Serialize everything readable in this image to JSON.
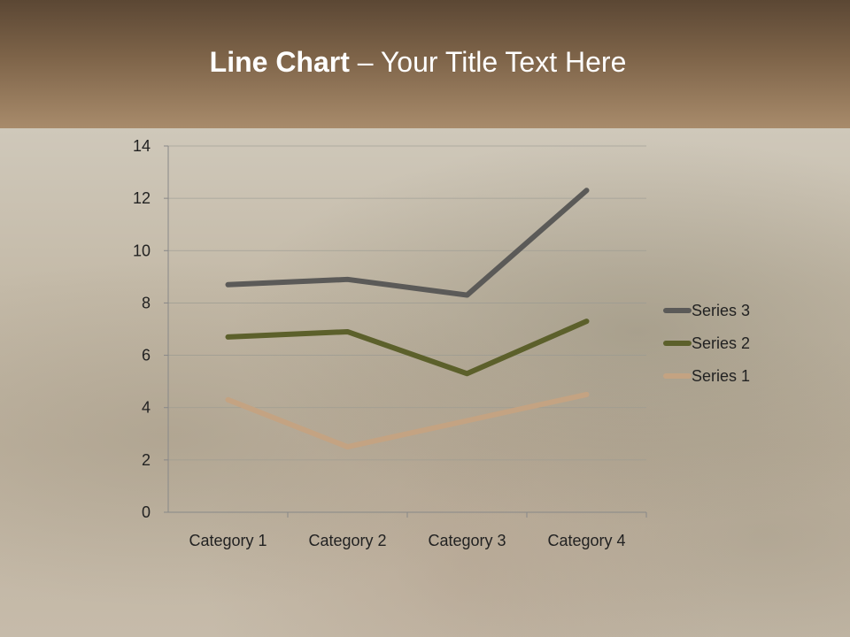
{
  "slide": {
    "title_bold": "Line Chart",
    "title_rest": " – Your Title Text Here"
  },
  "chart_data": {
    "type": "line",
    "title": "",
    "xlabel": "",
    "ylabel": "",
    "categories": [
      "Category 1",
      "Category 2",
      "Category 3",
      "Category 4"
    ],
    "ylim": [
      0,
      14
    ],
    "yticks": [
      0,
      2,
      4,
      6,
      8,
      10,
      12,
      14
    ],
    "grid": true,
    "legend_position": "right",
    "series": [
      {
        "name": "Series 1",
        "values": [
          4.3,
          2.5,
          3.5,
          4.5
        ],
        "color": "#c4a382"
      },
      {
        "name": "Series 2",
        "values": [
          6.7,
          6.9,
          5.3,
          7.3
        ],
        "color": "#5c602b"
      },
      {
        "name": "Series 3",
        "values": [
          8.7,
          8.9,
          8.3,
          12.3
        ],
        "color": "#5b5a58"
      }
    ]
  }
}
